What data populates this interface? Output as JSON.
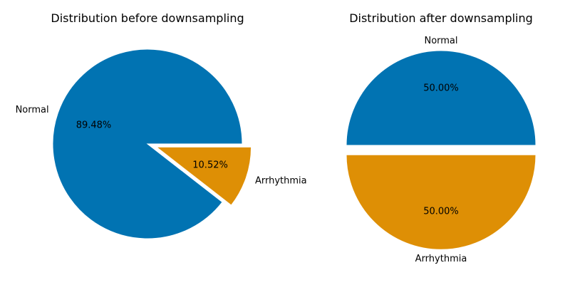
{
  "colors": {
    "normal": "#0173b2",
    "arrhythmia": "#de8f05",
    "edge": "#ffffff"
  },
  "chart_data": [
    {
      "type": "pie",
      "title": "Distribution before downsampling",
      "start_angle_deg": 0,
      "direction": "counterclockwise",
      "slices": [
        {
          "label": "Normal",
          "value": 89.48,
          "pct_text": "89.48%",
          "color": "#0173b2",
          "exploded": false
        },
        {
          "label": "Arrhythmia",
          "value": 10.52,
          "pct_text": "10.52%",
          "color": "#de8f05",
          "exploded": true
        }
      ]
    },
    {
      "type": "pie",
      "title": "Distribution after downsampling",
      "start_angle_deg": 0,
      "direction": "counterclockwise",
      "slices": [
        {
          "label": "Normal",
          "value": 50.0,
          "pct_text": "50.00%",
          "color": "#0173b2",
          "exploded": false
        },
        {
          "label": "Arrhythmia",
          "value": 50.0,
          "pct_text": "50.00%",
          "color": "#de8f05",
          "exploded": true
        }
      ]
    }
  ]
}
